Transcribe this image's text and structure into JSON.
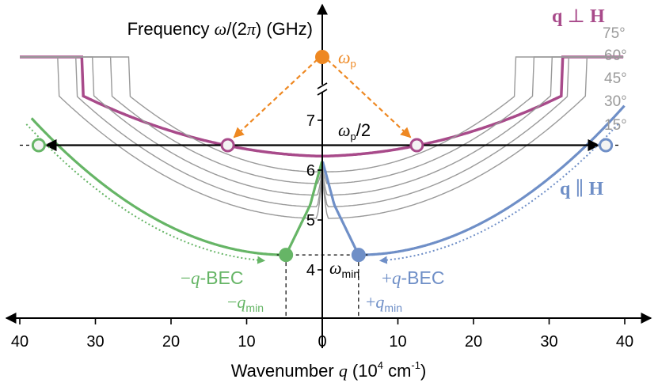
{
  "chart_data": {
    "type": "line",
    "xlabel": {
      "prefix": "Wavenumber ",
      "var": "q",
      "unit_open": " (10",
      "unit_exp": "4",
      "unit_mid": " cm",
      "unit_exp2": "-1",
      "unit_close": ")"
    },
    "ylabel": {
      "prefix": "Frequency ",
      "var": "ω",
      "mid": "/(2",
      "pi": "π",
      "suffix": ") (GHz)"
    },
    "x_ticks": [
      {
        "value": -40,
        "label": "40"
      },
      {
        "value": -30,
        "label": "30"
      },
      {
        "value": -20,
        "label": "20"
      },
      {
        "value": -10,
        "label": "10"
      },
      {
        "value": 0,
        "label": "0"
      },
      {
        "value": 10,
        "label": "10"
      },
      {
        "value": 20,
        "label": "20"
      },
      {
        "value": 30,
        "label": "30"
      },
      {
        "value": 40,
        "label": "40"
      }
    ],
    "y_ticks": [
      {
        "value": 4,
        "label": "4"
      },
      {
        "value": 5,
        "label": "5"
      },
      {
        "value": 6,
        "label": "6"
      },
      {
        "value": 7,
        "label": "7"
      }
    ],
    "xlim": [
      -40,
      40
    ],
    "ylim": [
      3.6,
      7.5
    ],
    "axis_break": true,
    "series": [
      {
        "name": "q ⊥ H",
        "color": "#a84a8a",
        "curve": "perp",
        "angle": 90
      },
      {
        "name": "75°",
        "color": "#9a9a9a",
        "curve": "angle",
        "angle": 75
      },
      {
        "name": "60°",
        "color": "#9a9a9a",
        "curve": "angle",
        "angle": 60
      },
      {
        "name": "45°",
        "color": "#9a9a9a",
        "curve": "angle",
        "angle": 45
      },
      {
        "name": "30°",
        "color": "#9a9a9a",
        "curve": "angle",
        "angle": 30
      },
      {
        "name": "15°",
        "color": "#9a9a9a",
        "curve": "angle",
        "angle": 15
      },
      {
        "name": "q ∥ H",
        "color": "#6f8fc7",
        "curve": "par",
        "angle": 0
      },
      {
        "name": "−q-BEC",
        "color": "#66b566",
        "curve": "par_neg",
        "angle": 0
      }
    ],
    "points": [
      {
        "id": "omega-p",
        "x": 0,
        "y": 7.9,
        "label": "ω",
        "sub": "p",
        "color": "#ee8822",
        "fill": true
      },
      {
        "id": "perp-left",
        "x": -12.5,
        "y": 6.5,
        "color": "#a84a8a",
        "fill": false
      },
      {
        "id": "perp-right",
        "x": 12.5,
        "y": 6.5,
        "color": "#a84a8a",
        "fill": false
      },
      {
        "id": "par-left",
        "x": -37.5,
        "y": 6.5,
        "color": "#66b566",
        "fill": false
      },
      {
        "id": "par-right",
        "x": 37.5,
        "y": 6.5,
        "color": "#6f8fc7",
        "fill": false
      },
      {
        "id": "bec-neg",
        "x": -4.8,
        "y": 4.3,
        "color": "#66b566",
        "fill": true
      },
      {
        "id": "bec-pos",
        "x": 4.8,
        "y": 4.3,
        "color": "#6f8fc7",
        "fill": true
      }
    ],
    "annotations": {
      "half_pump": {
        "main": "ω",
        "sub": "p",
        "tail": "/2"
      },
      "omega_min": {
        "main": "ω",
        "sub": "min"
      },
      "neg_qmin": {
        "pre": "−",
        "var": "q",
        "sub": "min"
      },
      "pos_qmin": {
        "pre": "+",
        "var": "q",
        "sub": "min"
      },
      "neg_bec": {
        "pre": "−",
        "var": "q",
        "tail": "-BEC"
      },
      "pos_bec": {
        "pre": "+",
        "var": "q",
        "tail": "-BEC"
      },
      "perp_label": {
        "a": "q",
        "op": " ⊥ ",
        "b": "H"
      },
      "par_label": {
        "a": "q",
        "op": " ∥ ",
        "b": "H"
      }
    },
    "colors": {
      "perp": "#a84a8a",
      "par": "#6f8fc7",
      "bec_neg": "#66b566",
      "pump": "#ee8822",
      "grey": "#9a9a9a",
      "axis": "#000000"
    }
  }
}
